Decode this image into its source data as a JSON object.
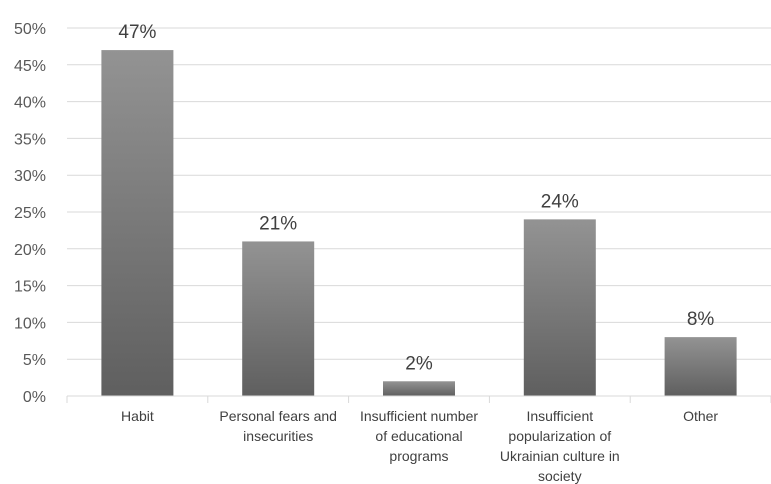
{
  "chart_data": {
    "type": "bar",
    "categories": [
      [
        "Habit"
      ],
      [
        "Personal fears and",
        "insecurities"
      ],
      [
        "Insufficient number",
        "of educational",
        "programs"
      ],
      [
        "Insufficient",
        "popularization of",
        "Ukrainian culture in",
        "society"
      ],
      [
        "Other"
      ]
    ],
    "values": [
      47,
      21,
      2,
      24,
      8
    ],
    "data_labels": [
      "47%",
      "21%",
      "2%",
      "24%",
      "8%"
    ],
    "yticks": [
      "0%",
      "5%",
      "10%",
      "15%",
      "20%",
      "25%",
      "30%",
      "35%",
      "40%",
      "45%",
      "50%"
    ],
    "ylim": [
      0,
      50
    ],
    "grid": true,
    "legend": "none",
    "title": "",
    "xlabel": "",
    "ylabel": "",
    "colors": {
      "bar_top": "#939393",
      "bar_bottom": "#5f5f5f",
      "grid": "#d9d9d9",
      "axis": "#d9d9d9",
      "tick_text": "#595959",
      "label_text": "#404040"
    }
  }
}
